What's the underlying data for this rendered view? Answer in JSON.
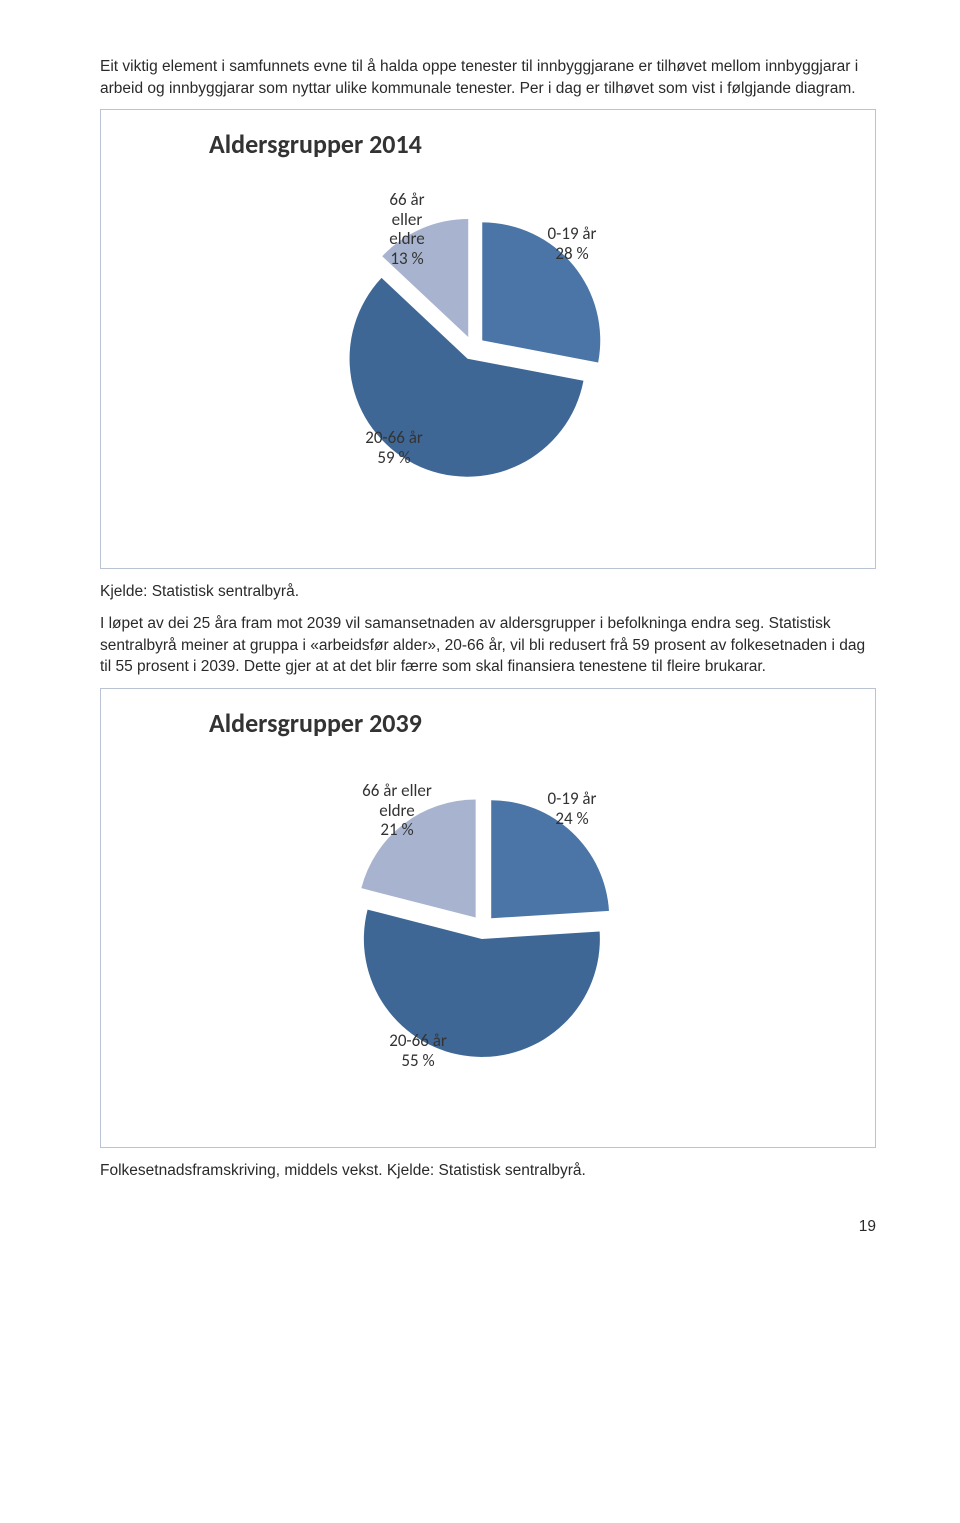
{
  "paragraphs": {
    "p1": "Eit viktig element i samfunnets evne til å halda oppe tenester til innbyggjarane er tilhøvet mellom innbyggjarar i arbeid og innbyggjarar som nyttar ulike kommunale tenester. Per i dag er tilhøvet som vist i følgjande diagram.",
    "source1": "Kjelde: Statistisk sentralbyrå.",
    "p2": "I løpet av dei 25 åra fram mot 2039 vil samansetnaden av aldersgrupper i befolkninga endra seg. Statistisk sentralbyrå meiner at gruppa i «arbeidsfør alder», 20-66 år, vil bli redusert frå 59 prosent av folkesetnaden i dag til 55 prosent i 2039. Dette gjer at at det blir færre som skal finansiera tenestene til fleire brukarar.",
    "source2": "Folkesetnadsframskriving, middels vekst. Kjelde: Statistisk sentralbyrå."
  },
  "chart1": {
    "type": "pie",
    "title": "Aldersgrupper 2014",
    "title_fontsize": 26,
    "background_color": "#ffffff",
    "border_color": "#b9c3d4",
    "slices": [
      {
        "label_l1": "0-19 år",
        "label_l2": "28 %",
        "value": 28,
        "color": "#4a75a6"
      },
      {
        "label_l1": "20-66 år",
        "label_l2": "59 %",
        "value": 59,
        "color": "#3e6796"
      },
      {
        "label_l1": "66 år",
        "label_l2": "eller",
        "label_l3": "eldre",
        "label_l4": "13 %",
        "value": 13,
        "color": "#a8b4cf"
      }
    ],
    "explode_gap": 12,
    "radius": 118
  },
  "chart2": {
    "type": "pie",
    "title": "Aldersgrupper 2039",
    "title_fontsize": 26,
    "background_color": "#ffffff",
    "border_color": "#b9c3d4",
    "slices": [
      {
        "label_l1": "0-19 år",
        "label_l2": "24 %",
        "value": 24,
        "color": "#4a75a6"
      },
      {
        "label_l1": "20-66 år",
        "label_l2": "55 %",
        "value": 55,
        "color": "#3e6796"
      },
      {
        "label_l1": "66 år eller",
        "label_l2": "eldre",
        "label_l3": "21 %",
        "value": 21,
        "color": "#a8b4cf"
      }
    ],
    "explode_gap": 12,
    "radius": 118
  },
  "page_number": "19",
  "typography": {
    "body_font": "Verdana",
    "body_size_pt": 11,
    "chart_label_font": "Calibri",
    "chart_label_size_pt": 13
  }
}
